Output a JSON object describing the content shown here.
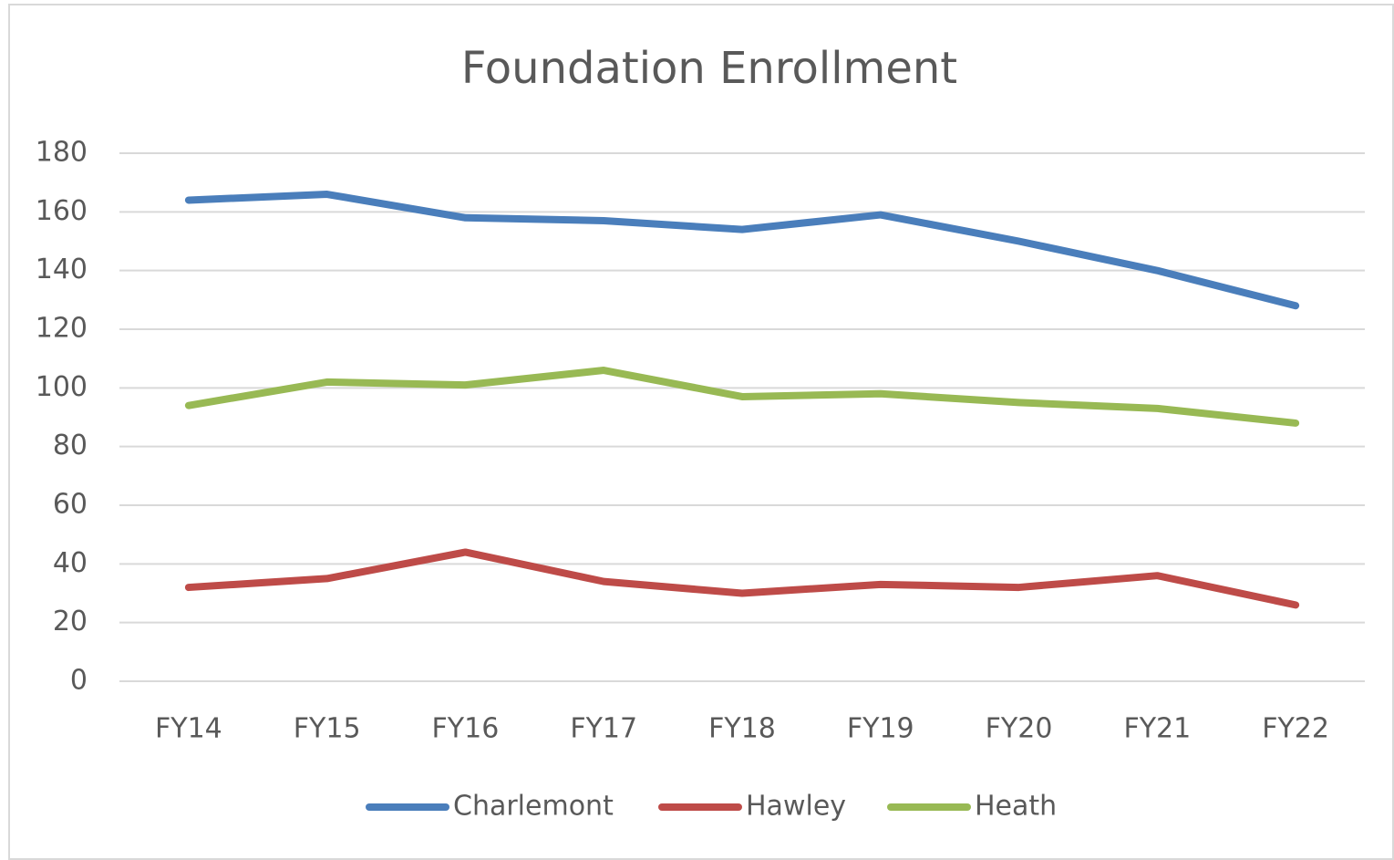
{
  "chart_data": {
    "type": "line",
    "title": "Foundation Enrollment",
    "categories": [
      "FY14",
      "FY15",
      "FY16",
      "FY17",
      "FY18",
      "FY19",
      "FY20",
      "FY21",
      "FY22"
    ],
    "series": [
      {
        "name": "Charlemont",
        "color": "#4a7ebb",
        "values": [
          164,
          166,
          158,
          157,
          154,
          159,
          150,
          140,
          128
        ]
      },
      {
        "name": "Hawley",
        "color": "#be4b48",
        "values": [
          32,
          35,
          44,
          34,
          30,
          33,
          32,
          36,
          26
        ]
      },
      {
        "name": "Heath",
        "color": "#98b954",
        "values": [
          94,
          102,
          101,
          106,
          97,
          98,
          95,
          93,
          88
        ]
      }
    ],
    "ylim": [
      0,
      180
    ],
    "yticks": [
      0,
      20,
      40,
      60,
      80,
      100,
      120,
      140,
      160,
      180
    ],
    "grid": true,
    "legend": "bottom"
  }
}
